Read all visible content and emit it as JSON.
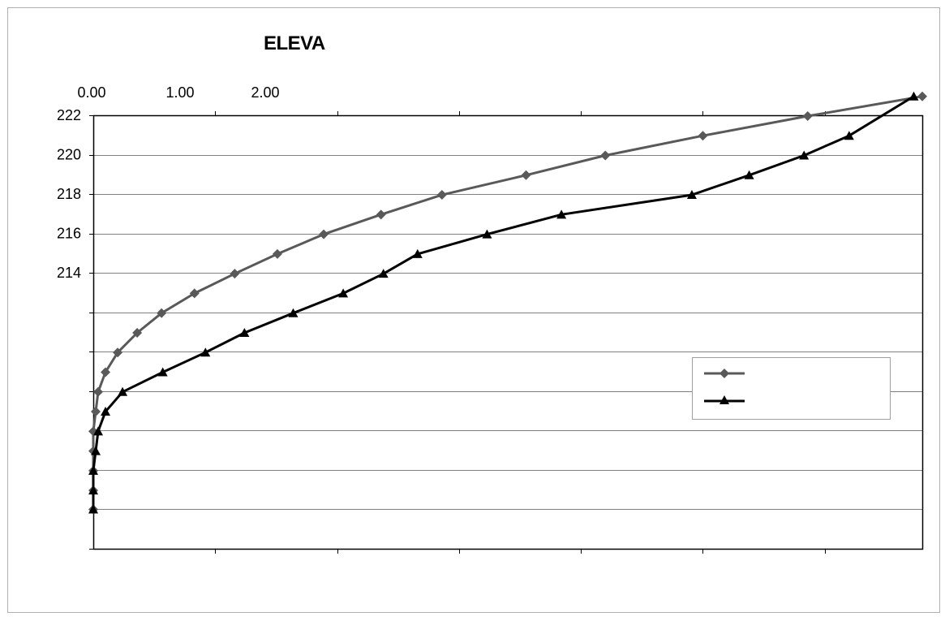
{
  "chart_data": {
    "type": "line",
    "title": "ELEVA",
    "xlabel": "",
    "ylabel": "",
    "x_tick_labels": [
      "0.00",
      "1.00",
      "2.00"
    ],
    "y_tick_labels": [
      "222",
      "220",
      "218",
      "216",
      "214"
    ],
    "ylim": [
      200,
      222
    ],
    "xlim": [
      0,
      6.8
    ],
    "grid": "horizontal",
    "legend_position": "right",
    "colors": {
      "series1": "#595959",
      "series2": "#000000",
      "grid": "#808080",
      "frame": "#000000"
    },
    "series": [
      {
        "marker": "diamond",
        "points": [
          [
            0.0,
            202
          ],
          [
            0.0,
            202.96
          ],
          [
            0.0,
            203.96
          ],
          [
            0.0,
            204.96
          ],
          [
            0.0,
            205.96
          ],
          [
            0.02,
            206.96
          ],
          [
            0.04,
            207.96
          ],
          [
            0.1,
            208.96
          ],
          [
            0.2,
            209.96
          ],
          [
            0.36,
            210.96
          ],
          [
            0.56,
            211.96
          ],
          [
            0.83,
            212.96
          ],
          [
            1.16,
            213.96
          ],
          [
            1.51,
            214.96
          ],
          [
            1.89,
            215.96
          ],
          [
            2.36,
            216.96
          ],
          [
            2.86,
            217.96
          ],
          [
            3.55,
            218.96
          ],
          [
            4.2,
            219.96
          ],
          [
            5.0,
            220.96
          ],
          [
            5.86,
            221.96
          ],
          [
            6.8,
            222.96
          ]
        ]
      },
      {
        "marker": "triangle",
        "points": [
          [
            0.0,
            202
          ],
          [
            0.0,
            202.96
          ],
          [
            0.0,
            203.96
          ],
          [
            0.02,
            204.96
          ],
          [
            0.04,
            205.96
          ],
          [
            0.1,
            206.96
          ],
          [
            0.24,
            207.96
          ],
          [
            0.57,
            208.96
          ],
          [
            0.92,
            209.96
          ],
          [
            1.24,
            210.96
          ],
          [
            1.64,
            211.96
          ],
          [
            2.05,
            212.96
          ],
          [
            2.38,
            213.96
          ],
          [
            2.66,
            214.96
          ],
          [
            3.23,
            215.96
          ],
          [
            3.84,
            216.96
          ],
          [
            4.91,
            217.96
          ],
          [
            5.38,
            218.96
          ],
          [
            5.83,
            219.96
          ],
          [
            6.2,
            220.96
          ],
          [
            6.73,
            222.96
          ]
        ]
      }
    ]
  }
}
